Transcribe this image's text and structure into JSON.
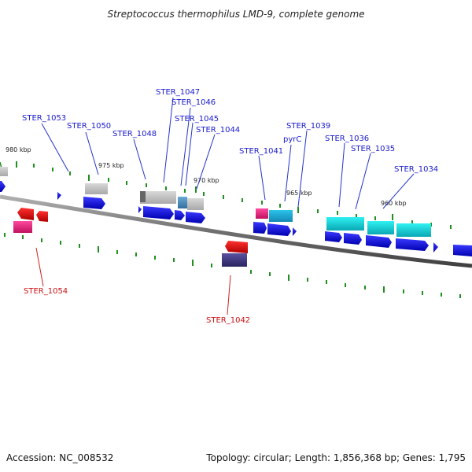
{
  "title": "Streptococcus thermophilus LMD-9, complete genome",
  "footer": {
    "accession": "Accession: NC_008532",
    "summary": "Topology: circular; Length: 1,856,368 bp; Genes: 1,795"
  },
  "scale_labels": [
    "980 kbp",
    "975 kbp",
    "970 kbp",
    "965 kbp",
    "960 kbp"
  ],
  "gene_labels": {
    "ster_1053": "STER_1053",
    "ster_1050": "STER_1050",
    "ster_1048": "STER_1048",
    "ster_1047": "STER_1047",
    "ster_1046": "STER_1046",
    "ster_1045": "STER_1045",
    "ster_1044": "STER_1044",
    "ster_1041": "STER_1041",
    "pyrc": "pyrC",
    "ster_1039": "STER_1039",
    "ster_1036": "STER_1036",
    "ster_1035": "STER_1035",
    "ster_1034": "STER_1034",
    "ster_1054": "STER_1054",
    "ster_1042": "STER_1042"
  },
  "colors": {
    "forward_gene": "#1010e0",
    "reverse_gene": "#e01010",
    "backbone": "#808080",
    "tick": "#1f8f1f",
    "product_gray": "#bdbdbd",
    "product_cyan": "#16d6d6",
    "product_magenta": "#e0207a",
    "product_navy": "#3b3477",
    "product_steelblue": "#4a8fc0"
  }
}
